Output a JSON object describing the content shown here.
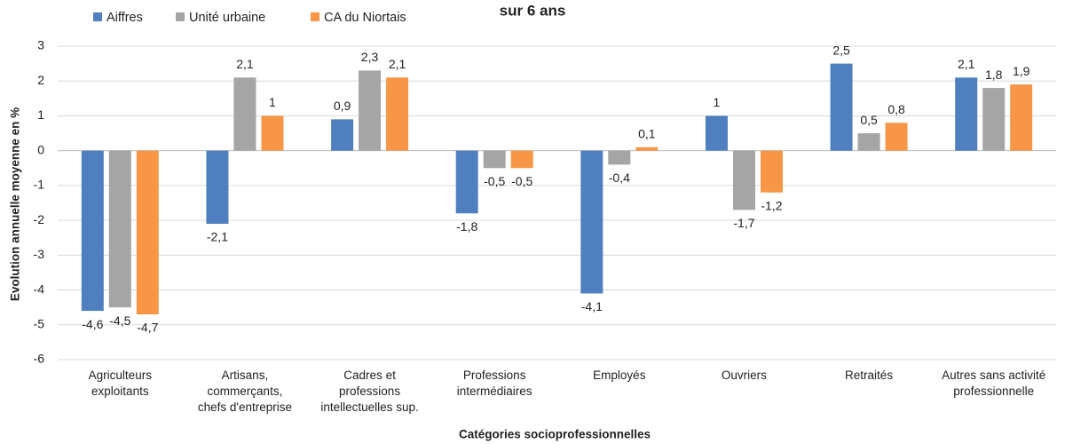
{
  "chart_data": {
    "type": "bar",
    "title": "sur 6 ans",
    "x_label": "Catégories socioprofessionnelles",
    "y_label": "Evolution annuelle moyenne en %",
    "categories": [
      "Agriculteurs\nexploitants",
      "Artisans,\ncommerçants,\nchefs d'entreprise",
      "Cadres et\nprofessions\nintellectuelles sup.",
      "Professions\nintermédiaires",
      "Employés",
      "Ouvriers",
      "Retraités",
      "Autres sans activité\nprofessionnelle"
    ],
    "series": [
      {
        "name": "Aiffres",
        "color": "#4f7fbf",
        "values": [
          -4.6,
          -2.1,
          0.9,
          -1.8,
          -4.1,
          1,
          2.5,
          2.1
        ],
        "value_labels": [
          "-4,6",
          "-2,1",
          "0,9",
          "-1,8",
          "-4,1",
          "1",
          "2,5",
          "2,1"
        ]
      },
      {
        "name": "Unité urbaine",
        "color": "#a5a5a5",
        "values": [
          -4.5,
          2.1,
          2.3,
          -0.5,
          -0.4,
          -1.7,
          0.5,
          1.8
        ],
        "value_labels": [
          "-4,5",
          "2,1",
          "2,3",
          "-0,5",
          "-0,4",
          "-1,7",
          "0,5",
          "1,8"
        ]
      },
      {
        "name": "CA du Niortais",
        "color": "#f79646",
        "values": [
          -4.7,
          1,
          2.1,
          -0.5,
          0.1,
          -1.2,
          0.8,
          1.9
        ],
        "value_labels": [
          "-4,7",
          "1",
          "2,1",
          "-0,5",
          "0,1",
          "-1,2",
          "0,8",
          "1,9"
        ]
      }
    ],
    "ylim": [
      -6,
      3
    ],
    "yticks": [
      -6,
      -5,
      -4,
      -3,
      -2,
      -1,
      0,
      1,
      2,
      3
    ],
    "grid": true,
    "legend": "top-left"
  }
}
